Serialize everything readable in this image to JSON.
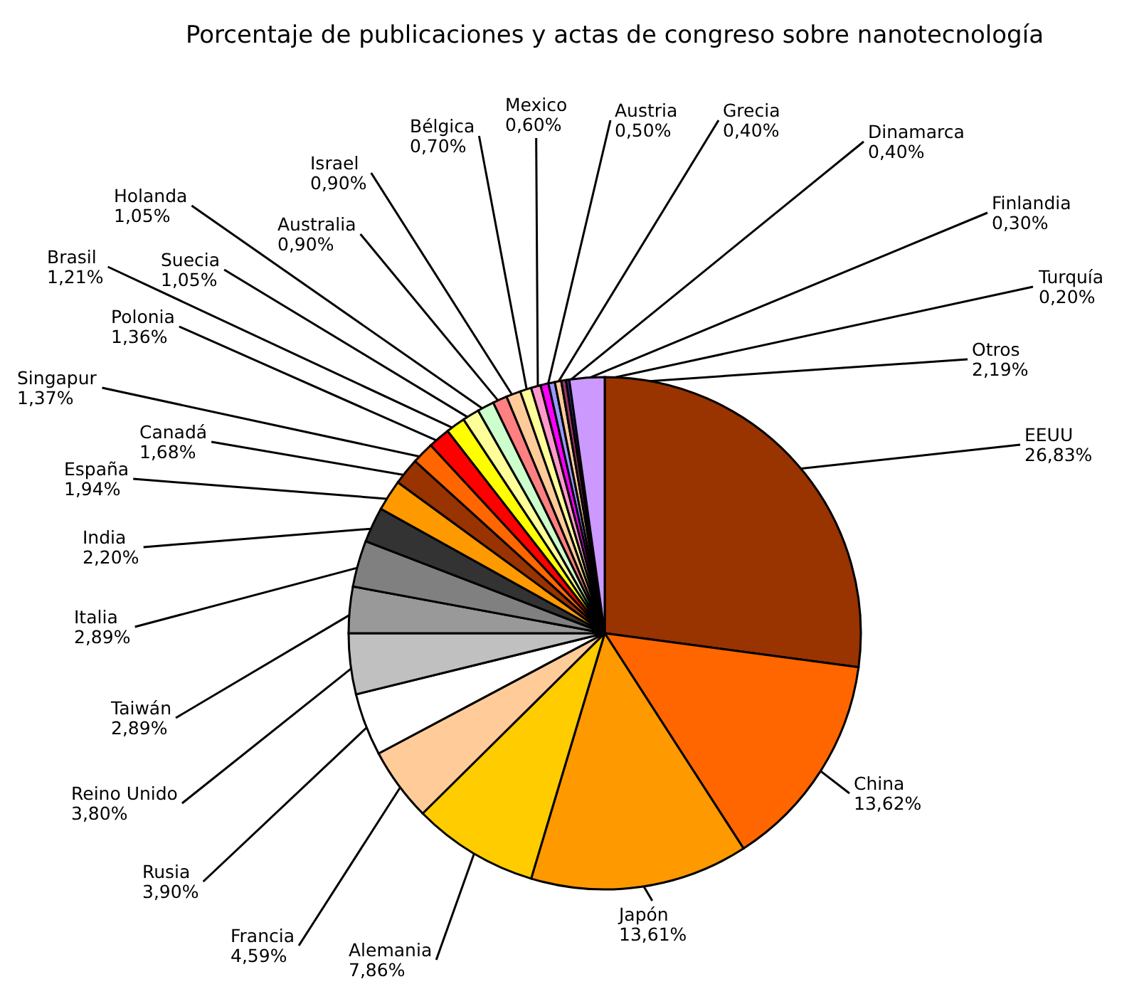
{
  "chart_data": {
    "type": "pie",
    "title": "Porcentaje de publicaciones y actas de congreso sobre nanotecnología",
    "categories": [
      "EEUU",
      "China",
      "Japón",
      "Alemania",
      "Francia",
      "Rusia",
      "Reino Unido",
      "Taiwán",
      "Italia",
      "India",
      "España",
      "Canadá",
      "Singapur",
      "Polonia",
      "Brasil",
      "Suecia",
      "Holanda",
      "Australia",
      "Israel",
      "Bélgica",
      "Mexico",
      "Austria",
      "Grecia",
      "Dinamarca",
      "Finlandia",
      "Turquía",
      "Otros"
    ],
    "values": [
      26.83,
      13.62,
      13.61,
      7.86,
      4.59,
      3.9,
      3.8,
      2.89,
      2.89,
      2.2,
      1.94,
      1.68,
      1.37,
      1.36,
      1.21,
      1.05,
      1.05,
      0.9,
      0.9,
      0.7,
      0.6,
      0.5,
      0.4,
      0.4,
      0.3,
      0.2,
      2.19
    ],
    "value_labels": [
      "26,83%",
      "13,62%",
      "13,61%",
      "7,86%",
      "4,59%",
      "3,90%",
      "3,80%",
      "2,89%",
      "2,89%",
      "2,20%",
      "1,94%",
      "1,68%",
      "1,37%",
      "1,36%",
      "1,21%",
      "1,05%",
      "1,05%",
      "0,90%",
      "0,90%",
      "0,70%",
      "0,60%",
      "0,50%",
      "0,40%",
      "0,40%",
      "0,30%",
      "0,20%",
      "2,19%"
    ],
    "colors": [
      "#993300",
      "#ff6600",
      "#ff9900",
      "#ffcc00",
      "#ffcc99",
      "#ffffff",
      "#c0c0c0",
      "#999999",
      "#808080",
      "#333333",
      "#ff9900",
      "#993300",
      "#ff6600",
      "#ff0000",
      "#ffff00",
      "#ffff99",
      "#ccffcc",
      "#ff8080",
      "#ffcc99",
      "#ffff99",
      "#ff99cc",
      "#ff00ff",
      "#9999ff",
      "#ffcc99",
      "#993366",
      "#333399",
      "#cc99ff"
    ],
    "legend": false
  }
}
